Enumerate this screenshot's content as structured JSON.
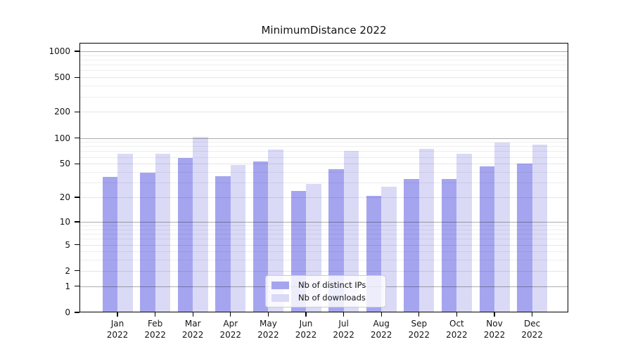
{
  "title": "MinimumDistance 2022",
  "chart_data": {
    "type": "bar",
    "title": "MinimumDistance 2022",
    "categories": [
      "Jan",
      "Feb",
      "Mar",
      "Apr",
      "May",
      "Jun",
      "Jul",
      "Aug",
      "Sep",
      "Oct",
      "Nov",
      "Dec"
    ],
    "category_year": "2022",
    "series": [
      {
        "name": "Nb of distinct IPs",
        "color": "#a5a5ef",
        "values": [
          35,
          39,
          59,
          36,
          53,
          24,
          43,
          21,
          33,
          33,
          47,
          50
        ]
      },
      {
        "name": "Nb of downloads",
        "color": "#dadaf7",
        "values": [
          66,
          66,
          103,
          48,
          73,
          29,
          70,
          27,
          75,
          66,
          88,
          84
        ]
      }
    ],
    "xlabel": "",
    "ylabel": "",
    "y_scale": "log1p",
    "y_ticks": [
      0,
      1,
      2,
      5,
      10,
      20,
      50,
      100,
      200,
      500,
      1000
    ],
    "ylim": [
      0,
      1250
    ],
    "grid": true,
    "gridlines_over_bars": true,
    "legend": {
      "position": "bottom-center",
      "entries": [
        "Nb of distinct IPs",
        "Nb of downloads"
      ]
    }
  }
}
